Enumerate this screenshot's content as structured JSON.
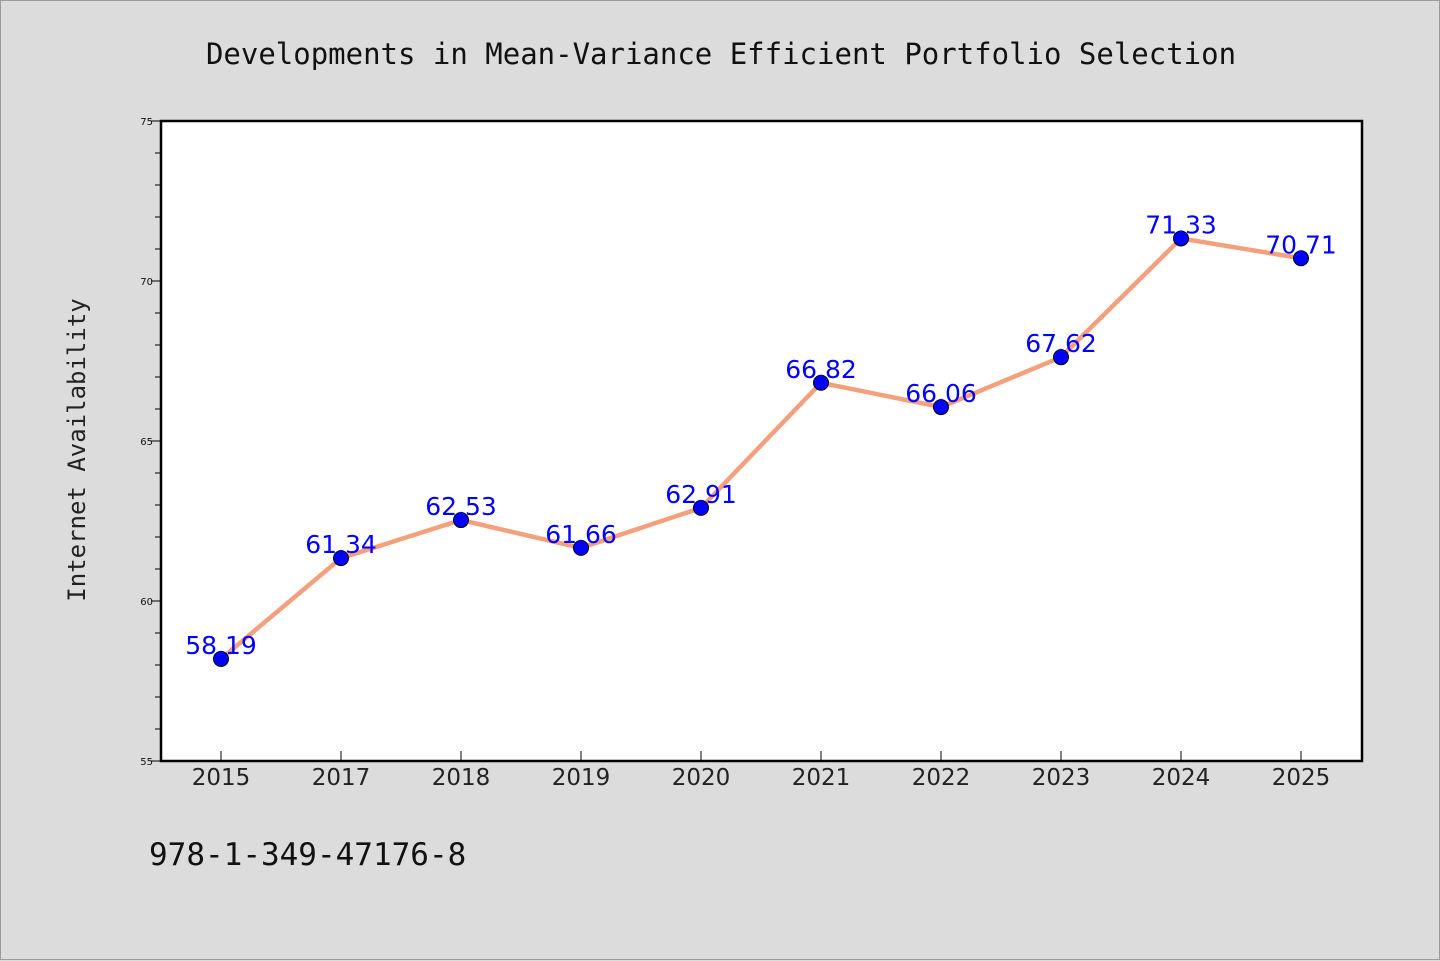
{
  "chart_data": {
    "type": "line",
    "title": "Developments in Mean-Variance Efficient Portfolio Selection",
    "xlabel": "",
    "ylabel": "Internet Availability",
    "categories": [
      "2015",
      "2017",
      "2018",
      "2019",
      "2020",
      "2021",
      "2022",
      "2023",
      "2024",
      "2025"
    ],
    "series": [
      {
        "values": [
          58.19,
          61.34,
          62.53,
          61.66,
          62.91,
          66.82,
          66.06,
          67.62,
          71.33,
          70.71
        ],
        "data_labels": [
          "58.19",
          "61.34",
          "62.53",
          "61.66",
          "62.91",
          "66.82",
          "66.06",
          "67.62",
          "71.33",
          "70.71"
        ]
      }
    ],
    "ylim": [
      55,
      75
    ],
    "yticks": [
      55,
      60,
      65,
      70,
      75
    ],
    "ytick_labels": [
      "55",
      "60",
      "65",
      "70",
      "75"
    ],
    "grid": false,
    "legend": "none",
    "colors": {
      "background": "#dcdcdc",
      "plot_area": "#ffffff",
      "line": "#f4a07c",
      "marker": "#0000ff",
      "data_label": "#0000ff"
    }
  },
  "footnote": "978-1-349-47176-8"
}
